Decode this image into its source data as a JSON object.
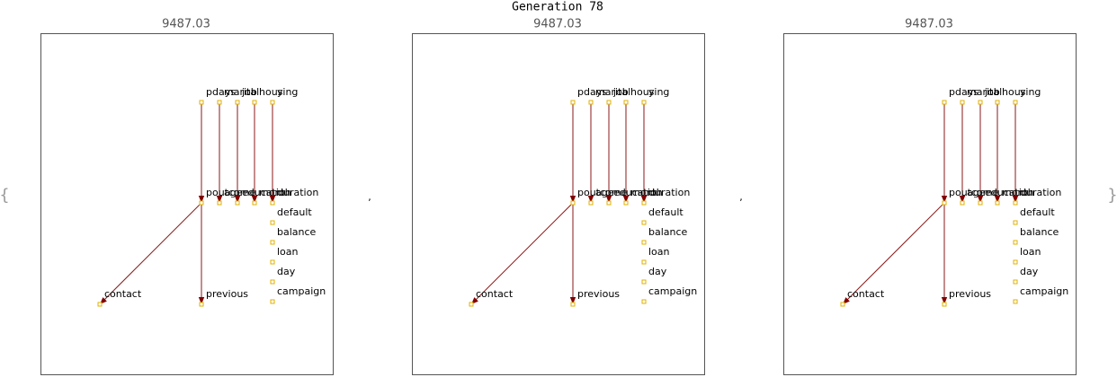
{
  "title": "Generation 78",
  "open": "{",
  "separator": ",",
  "close": "}",
  "panels": [
    {
      "title": "9487.03",
      "nodes": [
        "pdays",
        "marital",
        "job",
        "housing",
        "y",
        "poutcome",
        "age",
        "education",
        "month",
        "duration",
        "default",
        "balance",
        "loan",
        "day",
        "campaign",
        "contact",
        "previous"
      ],
      "edges": [
        [
          0,
          5
        ],
        [
          1,
          6
        ],
        [
          2,
          7
        ],
        [
          3,
          8
        ],
        [
          4,
          9
        ],
        [
          5,
          15
        ],
        [
          5,
          16
        ]
      ]
    },
    {
      "title": "9487.03",
      "nodes": [
        "pdays",
        "marital",
        "job",
        "housing",
        "y",
        "poutcome",
        "age",
        "education",
        "month",
        "duration",
        "default",
        "balance",
        "loan",
        "day",
        "campaign",
        "contact",
        "previous"
      ],
      "edges": [
        [
          0,
          5
        ],
        [
          1,
          6
        ],
        [
          2,
          7
        ],
        [
          3,
          8
        ],
        [
          4,
          9
        ],
        [
          5,
          15
        ],
        [
          5,
          16
        ]
      ]
    },
    {
      "title": "9487.03",
      "nodes": [
        "pdays",
        "marital",
        "job",
        "housing",
        "y",
        "poutcome",
        "age",
        "education",
        "month",
        "duration",
        "default",
        "balance",
        "loan",
        "day",
        "campaign",
        "contact",
        "previous"
      ],
      "edges": [
        [
          0,
          5
        ],
        [
          1,
          6
        ],
        [
          2,
          7
        ],
        [
          3,
          8
        ],
        [
          4,
          9
        ],
        [
          5,
          15
        ],
        [
          5,
          16
        ]
      ]
    }
  ]
}
